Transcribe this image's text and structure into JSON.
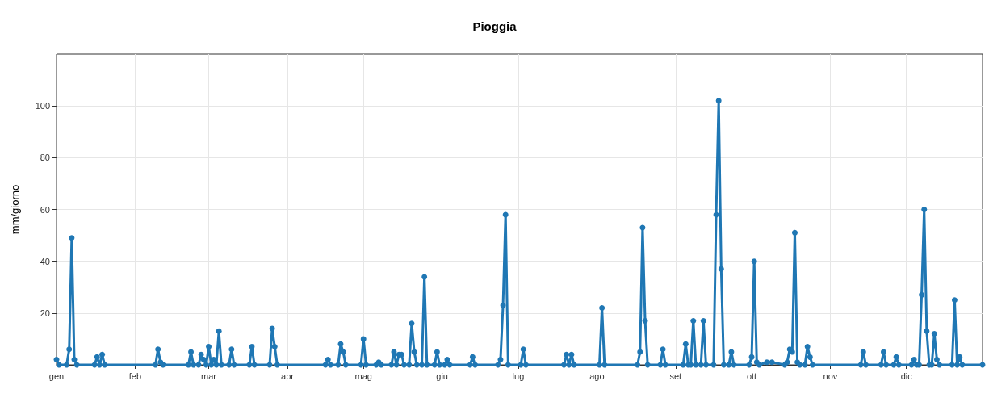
{
  "chart_data": {
    "type": "line",
    "title": "Pioggia",
    "ylabel": "mm/giorno",
    "x": [
      "--01-01",
      "--01-02",
      "--01-05",
      "--01-06",
      "--01-07",
      "--01-08",
      "--01-09",
      "--01-16",
      "--01-17",
      "--01-18",
      "--01-19",
      "--01-20",
      "--02-09",
      "--02-10",
      "--02-11",
      "--02-12",
      "--02-22",
      "--02-23",
      "--02-24",
      "--02-26",
      "--02-27",
      "--02-28",
      "--02-29",
      "--03-01",
      "--03-02",
      "--03-03",
      "--03-04",
      "--03-05",
      "--03-06",
      "--03-09",
      "--03-10",
      "--03-11",
      "--03-17",
      "--03-18",
      "--03-19",
      "--03-25",
      "--03-26",
      "--03-27",
      "--03-28",
      "--04-16",
      "--04-17",
      "--04-18",
      "--04-21",
      "--04-22",
      "--04-23",
      "--04-24",
      "--04-30",
      "--05-01",
      "--05-02",
      "--05-06",
      "--05-07",
      "--05-08",
      "--05-12",
      "--05-13",
      "--05-14",
      "--05-15",
      "--05-16",
      "--05-17",
      "--05-19",
      "--05-20",
      "--05-21",
      "--05-22",
      "--05-24",
      "--05-25",
      "--05-26",
      "--05-29",
      "--05-30",
      "--05-31",
      "--06-02",
      "--06-03",
      "--06-04",
      "--06-12",
      "--06-13",
      "--06-14",
      "--06-23",
      "--06-24",
      "--06-25",
      "--06-26",
      "--06-27",
      "--07-02",
      "--07-03",
      "--07-04",
      "--07-19",
      "--07-20",
      "--07-21",
      "--07-22",
      "--07-23",
      "--08-02",
      "--08-03",
      "--08-04",
      "--08-17",
      "--08-18",
      "--08-19",
      "--08-20",
      "--08-21",
      "--08-26",
      "--08-27",
      "--08-28",
      "--09-04",
      "--09-05",
      "--09-06",
      "--09-07",
      "--09-08",
      "--09-09",
      "--09-11",
      "--09-12",
      "--09-13",
      "--09-16",
      "--09-17",
      "--09-18",
      "--09-19",
      "--09-20",
      "--09-22",
      "--09-23",
      "--09-24",
      "--09-30",
      "--10-01",
      "--10-02",
      "--10-03",
      "--10-04",
      "--10-07",
      "--10-09",
      "--10-14",
      "--10-15",
      "--10-16",
      "--10-17",
      "--10-18",
      "--10-19",
      "--10-20",
      "--10-22",
      "--10-23",
      "--10-24",
      "--10-25",
      "--11-13",
      "--11-14",
      "--11-15",
      "--11-21",
      "--11-22",
      "--11-23",
      "--11-26",
      "--11-27",
      "--11-28",
      "--12-03",
      "--12-04",
      "--12-05",
      "--12-06",
      "--12-07",
      "--12-08",
      "--12-09",
      "--12-10",
      "--12-11",
      "--12-12",
      "--12-13",
      "--12-14",
      "--12-19",
      "--12-20",
      "--12-21",
      "--12-22",
      "--12-23",
      "--12-31"
    ],
    "series": [
      {
        "color": "#1f77b4",
        "values": [
          2,
          0,
          0,
          6,
          49,
          2,
          0,
          0,
          3,
          0,
          4,
          0,
          0,
          6,
          1,
          0,
          0,
          5,
          0,
          0,
          4,
          2,
          0,
          7,
          0,
          2,
          0,
          13,
          0,
          0,
          6,
          0,
          0,
          7,
          0,
          0,
          14,
          7,
          0,
          0,
          2,
          0,
          0,
          8,
          5,
          0,
          0,
          10,
          0,
          0,
          1,
          0,
          0,
          5,
          0,
          4,
          4,
          0,
          0,
          16,
          5,
          0,
          0,
          34,
          0,
          0,
          5,
          0,
          0,
          2,
          0,
          0,
          3,
          0,
          0,
          2,
          23,
          58,
          0,
          0,
          6,
          0,
          0,
          4,
          0,
          4,
          0,
          0,
          22,
          0,
          0,
          5,
          53,
          17,
          0,
          0,
          6,
          0,
          0,
          8,
          0,
          0,
          17,
          0,
          0,
          17,
          0,
          0,
          58,
          102,
          37,
          0,
          0,
          5,
          0,
          0,
          3,
          40,
          1,
          0,
          1,
          1,
          0,
          1,
          6,
          5,
          51,
          1,
          0,
          0,
          7,
          3,
          0,
          0,
          5,
          0,
          0,
          5,
          0,
          0,
          3,
          0,
          0,
          2,
          0,
          0,
          27,
          60,
          13,
          0,
          0,
          12,
          2,
          0,
          0,
          25,
          0,
          3,
          0,
          0
        ]
      }
    ],
    "xlim": [
      "--01-01",
      "--12-31"
    ],
    "xticks": [
      {
        "value": "--01-01",
        "label": "gen"
      },
      {
        "value": "--02-01",
        "label": "feb"
      },
      {
        "value": "--03-01",
        "label": "mar"
      },
      {
        "value": "--04-01",
        "label": "apr"
      },
      {
        "value": "--05-01",
        "label": "mag"
      },
      {
        "value": "--06-01",
        "label": "giu"
      },
      {
        "value": "--07-01",
        "label": "lug"
      },
      {
        "value": "--08-01",
        "label": "ago"
      },
      {
        "value": "--09-01",
        "label": "set"
      },
      {
        "value": "--10-01",
        "label": "ott"
      },
      {
        "value": "--11-01",
        "label": "nov"
      },
      {
        "value": "--12-01",
        "label": "dic"
      }
    ],
    "ylim": [
      0,
      120
    ],
    "yticks": [
      20,
      40,
      60,
      80,
      100
    ],
    "grid": true,
    "marker": "circle",
    "line_style": "solid"
  }
}
